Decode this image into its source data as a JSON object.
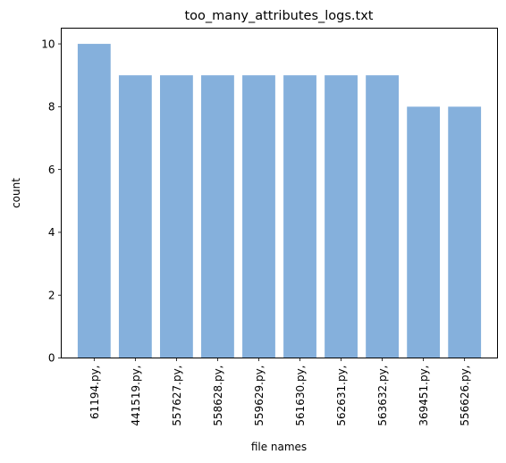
{
  "chart_data": {
    "type": "bar",
    "title": "too_many_attributes_logs.txt",
    "xlabel": "file names",
    "ylabel": "count",
    "categories": [
      "61194.py,",
      "441519.py,",
      "557627.py,",
      "558628.py,",
      "559629.py,",
      "561630.py,",
      "562631.py,",
      "563632.py,",
      "369451.py,",
      "556626.py,"
    ],
    "values": [
      10,
      9,
      9,
      9,
      9,
      9,
      9,
      9,
      8,
      8
    ],
    "ylim": [
      0,
      10.5
    ],
    "yticks": [
      0,
      2,
      4,
      6,
      8,
      10
    ],
    "bar_color": "#85B0DC",
    "grid": false,
    "legend": false
  }
}
